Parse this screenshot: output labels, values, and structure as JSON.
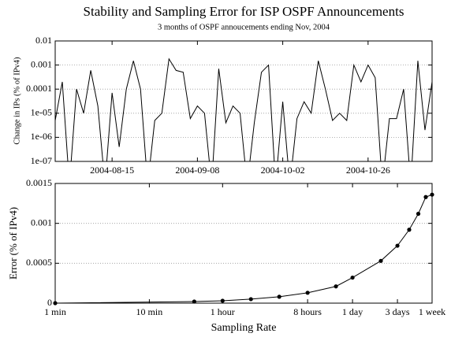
{
  "chart_data": [
    {
      "type": "line",
      "title": "Stability and Sampling Error for ISP OSPF Announcements",
      "subtitle": "3 months of OSPF annoucements ending Nov, 2004",
      "y_label": "Change in IPs (% of IPv4)",
      "x": [
        "2004-07-30",
        "2004-08-01",
        "2004-08-03",
        "2004-08-05",
        "2004-08-07",
        "2004-08-09",
        "2004-08-11",
        "2004-08-13",
        "2004-08-15",
        "2004-08-17",
        "2004-08-19",
        "2004-08-21",
        "2004-08-23",
        "2004-08-25",
        "2004-08-27",
        "2004-08-29",
        "2004-08-31",
        "2004-09-02",
        "2004-09-04",
        "2004-09-06",
        "2004-09-08",
        "2004-09-10",
        "2004-09-12",
        "2004-09-14",
        "2004-09-16",
        "2004-09-18",
        "2004-09-20",
        "2004-09-22",
        "2004-09-24",
        "2004-09-26",
        "2004-09-28",
        "2004-09-30",
        "2004-10-02",
        "2004-10-04",
        "2004-10-06",
        "2004-10-08",
        "2004-10-10",
        "2004-10-12",
        "2004-10-14",
        "2004-10-16",
        "2004-10-18",
        "2004-10-20",
        "2004-10-22",
        "2004-10-24",
        "2004-10-26",
        "2004-10-28",
        "2004-10-30",
        "2004-11-01",
        "2004-11-03",
        "2004-11-05",
        "2004-11-07",
        "2004-11-09",
        "2004-11-11",
        "2004-11-13"
      ],
      "values": [
        5e-06,
        0.0002,
        0,
        0.0001,
        1e-05,
        0.0006,
        2e-05,
        0,
        7e-05,
        4e-07,
        0.0001,
        0.0015,
        0.0001,
        0,
        5e-06,
        1e-05,
        0.0018,
        0.0006,
        0.0005,
        6e-06,
        2e-05,
        1e-05,
        0,
        0.0007,
        4e-06,
        2e-05,
        1e-05,
        0,
        4e-06,
        0.0005,
        0.001,
        0,
        3e-05,
        0,
        6e-06,
        3e-05,
        1e-05,
        0.0015,
        0.0001,
        5e-06,
        1e-05,
        5e-06,
        0.001,
        0.0002,
        0.001,
        0.0003,
        0,
        6e-06,
        6e-06,
        0.0001,
        0,
        0.0015,
        2e-06,
        0.0002
      ],
      "color": "#000000",
      "xlim": [
        "2004-07-30",
        "2004-11-13"
      ],
      "xticks": [
        "2004-08-15",
        "2004-09-08",
        "2004-10-02",
        "2004-10-26"
      ],
      "ylim": [
        1e-07,
        0.01
      ],
      "yticks": [
        0.01,
        0.001,
        0.0001,
        {
          "value": 1e-05,
          "label": "1e-05"
        },
        {
          "value": 1e-06,
          "label": "1e-06"
        },
        {
          "value": 1e-07,
          "label": "1e-07"
        }
      ],
      "log_y": true,
      "grid": true
    },
    {
      "type": "line",
      "x_label": "Sampling Rate",
      "y_label": "Error (% of IPv4)",
      "x": [
        1,
        30,
        60,
        120,
        240,
        480,
        960,
        1440,
        2880,
        4320,
        5760,
        7200,
        8640,
        10080
      ],
      "values": [
        0,
        2e-05,
        3e-05,
        5e-05,
        8e-05,
        0.00013,
        0.00021,
        0.00032,
        0.00053,
        0.00072,
        0.00092,
        0.00112,
        0.00133,
        0.00136
      ],
      "color": "#000000",
      "xlim": [
        1,
        10080
      ],
      "xticks": [
        {
          "value": 1,
          "label": "1 min"
        },
        {
          "value": 10,
          "label": "10 min"
        },
        {
          "value": 60,
          "label": "1 hour"
        },
        {
          "value": 480,
          "label": "8 hours"
        },
        {
          "value": 1440,
          "label": "1 day"
        },
        {
          "value": 4320,
          "label": "3 days"
        },
        {
          "value": 10080,
          "label": "1 week"
        }
      ],
      "ylim": [
        0,
        0.0015
      ],
      "yticks": [
        0,
        0.0005,
        0.001,
        0.0015
      ],
      "log_x": true,
      "markers": true,
      "grid": true
    }
  ]
}
